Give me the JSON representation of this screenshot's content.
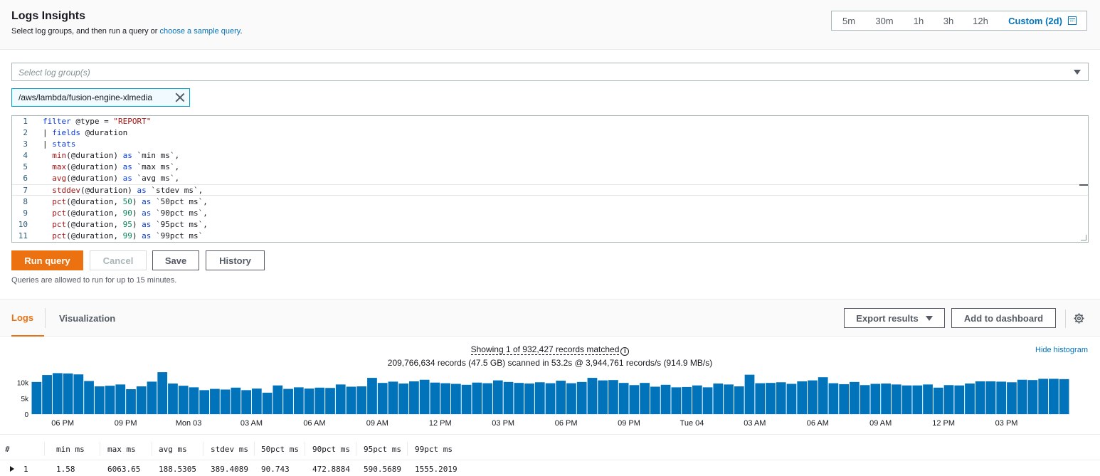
{
  "header": {
    "title": "Logs Insights",
    "subtitle_prefix": "Select log groups, and then run a query or ",
    "subtitle_link": "choose a sample query",
    "subtitle_suffix": "."
  },
  "time_range": {
    "options": [
      "5m",
      "30m",
      "1h",
      "3h",
      "12h"
    ],
    "custom_label": "Custom (2d)",
    "selected": "Custom (2d)"
  },
  "log_group_select": {
    "placeholder": "Select log group(s)"
  },
  "selected_log_groups": [
    "/aws/lambda/fusion-engine-xlmedia"
  ],
  "editor": {
    "lines": [
      "filter @type = \"REPORT\"",
      "| fields @duration",
      "| stats",
      "  min(@duration) as `min ms`,",
      "  max(@duration) as `max ms`,",
      "  avg(@duration) as `avg ms`,",
      "  stddev(@duration) as `stdev ms`,",
      "  pct(@duration, 50) as `50pct ms`,",
      "  pct(@duration, 90) as `90pct ms`,",
      "  pct(@duration, 95) as `95pct ms`,",
      "  pct(@duration, 99) as `99pct ms`"
    ]
  },
  "actions": {
    "run": "Run query",
    "cancel": "Cancel",
    "save": "Save",
    "history": "History",
    "hint": "Queries are allowed to run for up to 15 minutes."
  },
  "tabs": {
    "logs": "Logs",
    "visualization": "Visualization",
    "active": "Logs"
  },
  "results_actions": {
    "export": "Export results",
    "add_dashboard": "Add to dashboard",
    "hide_histogram": "Hide histogram"
  },
  "summary": {
    "matched": "Showing 1 of 932,427 records matched",
    "scanned": "209,766,634 records (47.5 GB) scanned in 53.2s @ 3,944,761 records/s (914.9 MB/s)"
  },
  "chart_data": {
    "type": "bar",
    "y_ticks": [
      "0",
      "5k",
      "10k"
    ],
    "ylim": [
      0,
      14000
    ],
    "x_ticks": [
      "06 PM",
      "09 PM",
      "Mon 03",
      "03 AM",
      "06 AM",
      "09 AM",
      "12 PM",
      "03 PM",
      "06 PM",
      "09 PM",
      "Tue 04",
      "03 AM",
      "06 AM",
      "09 AM",
      "12 PM",
      "03 PM"
    ],
    "values": [
      10200,
      12400,
      13000,
      12900,
      12600,
      10500,
      8800,
      9000,
      9400,
      7900,
      8800,
      10300,
      13300,
      9700,
      9000,
      8500,
      7600,
      8000,
      7800,
      8400,
      7600,
      8100,
      6800,
      9100,
      8000,
      8500,
      8100,
      8400,
      8300,
      9400,
      8700,
      8800,
      11500,
      9900,
      10300,
      9700,
      10400,
      10900,
      10000,
      9800,
      9600,
      9300,
      10000,
      9800,
      10700,
      10200,
      9900,
      9700,
      10100,
      9800,
      10600,
      9800,
      10200,
      11500,
      10700,
      10800,
      9900,
      9200,
      9900,
      8700,
      9300,
      8500,
      8600,
      9100,
      8500,
      9700,
      9400,
      8800,
      12500,
      9800,
      9900,
      10100,
      9600,
      10400,
      10700,
      11700,
      9800,
      9500,
      10200,
      9200,
      9600,
      9700,
      9400,
      9100,
      9100,
      9400,
      8400,
      9200,
      9100,
      9700,
      10400,
      10400,
      10300,
      10100,
      10900,
      10800,
      11200,
      11200,
      11100
    ]
  },
  "table": {
    "columns": [
      "#",
      "min ms",
      "max ms",
      "avg ms",
      "stdev ms",
      "50pct ms",
      "90pct ms",
      "95pct ms",
      "99pct ms"
    ],
    "rows": [
      [
        "1",
        "1.58",
        "6063.65",
        "188.5305",
        "389.4089",
        "90.743",
        "472.8884",
        "590.5689",
        "1555.2019"
      ]
    ]
  },
  "colors": {
    "accent": "#ec7211",
    "link": "#0073bb",
    "bar": "#0073bb"
  }
}
